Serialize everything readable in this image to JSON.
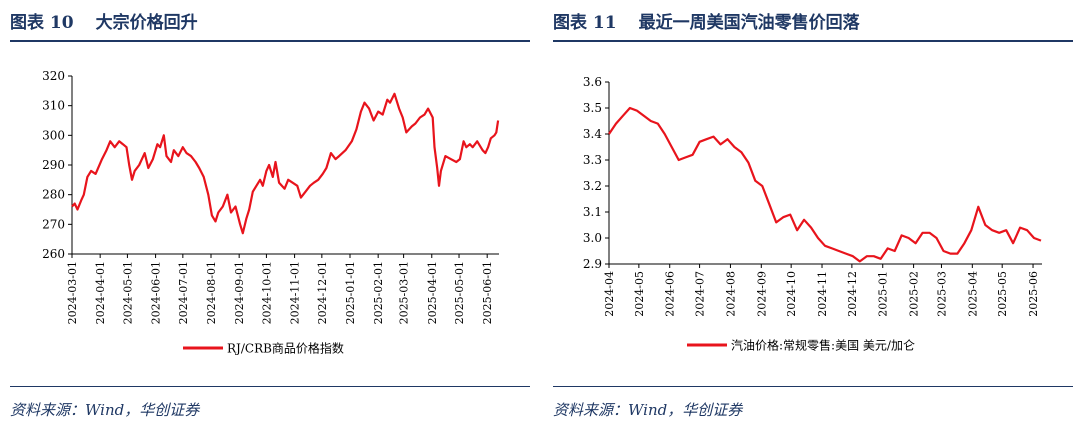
{
  "left": {
    "title_label": "图表 10",
    "title_text": "大宗价格回升",
    "source": "资料来源：Wind，华创证券"
  },
  "right": {
    "title_label": "图表 11",
    "title_text": "最近一周美国汽油零售价回落",
    "source": "资料来源：Wind，华创证券"
  },
  "colors": {
    "series": "#e8141c",
    "title": "#1f3864"
  },
  "chart_data": [
    {
      "type": "line",
      "title": "",
      "xlabel": "",
      "ylabel": "",
      "ylim": [
        260,
        320
      ],
      "yticks": [
        260,
        270,
        280,
        290,
        300,
        310,
        320
      ],
      "xticks": [
        "2024-03-01",
        "2024-04-01",
        "2024-05-01",
        "2024-06-01",
        "2024-07-01",
        "2024-08-01",
        "2024-09-01",
        "2024-10-01",
        "2024-11-01",
        "2024-12-01",
        "2025-01-01",
        "2025-02-01",
        "2025-03-01",
        "2025-04-01",
        "2025-05-01",
        "2025-06-01"
      ],
      "xrange": [
        "2024-03-01",
        "2025-06-14"
      ],
      "legend_position": "bottom",
      "grid": false,
      "series": [
        {
          "name": "RJ/CRB商品价格指数",
          "points": [
            [
              "2024-03-01",
              276
            ],
            [
              "2024-03-04",
              277
            ],
            [
              "2024-03-07",
              275
            ],
            [
              "2024-03-11",
              278
            ],
            [
              "2024-03-14",
              280
            ],
            [
              "2024-03-18",
              286
            ],
            [
              "2024-03-22",
              288
            ],
            [
              "2024-03-27",
              287
            ],
            [
              "2024-04-03",
              292
            ],
            [
              "2024-04-08",
              295
            ],
            [
              "2024-04-12",
              298
            ],
            [
              "2024-04-17",
              296
            ],
            [
              "2024-04-22",
              298
            ],
            [
              "2024-04-26",
              297
            ],
            [
              "2024-04-30",
              296
            ],
            [
              "2024-05-03",
              290
            ],
            [
              "2024-05-06",
              285
            ],
            [
              "2024-05-09",
              288
            ],
            [
              "2024-05-14",
              290
            ],
            [
              "2024-05-20",
              294
            ],
            [
              "2024-05-24",
              289
            ],
            [
              "2024-05-29",
              292
            ],
            [
              "2024-06-03",
              297
            ],
            [
              "2024-06-06",
              296
            ],
            [
              "2024-06-10",
              300
            ],
            [
              "2024-06-13",
              293
            ],
            [
              "2024-06-18",
              291
            ],
            [
              "2024-06-21",
              295
            ],
            [
              "2024-06-26",
              293
            ],
            [
              "2024-07-01",
              296
            ],
            [
              "2024-07-05",
              294
            ],
            [
              "2024-07-10",
              293
            ],
            [
              "2024-07-15",
              291
            ],
            [
              "2024-07-19",
              289
            ],
            [
              "2024-07-24",
              286
            ],
            [
              "2024-07-29",
              280
            ],
            [
              "2024-08-02",
              273
            ],
            [
              "2024-08-06",
              271
            ],
            [
              "2024-08-09",
              274
            ],
            [
              "2024-08-14",
              276
            ],
            [
              "2024-08-19",
              280
            ],
            [
              "2024-08-23",
              274
            ],
            [
              "2024-08-28",
              276
            ],
            [
              "2024-09-02",
              270
            ],
            [
              "2024-09-05",
              267
            ],
            [
              "2024-09-09",
              272
            ],
            [
              "2024-09-12",
              275
            ],
            [
              "2024-09-16",
              281
            ],
            [
              "2024-09-20",
              283
            ],
            [
              "2024-09-24",
              285
            ],
            [
              "2024-09-27",
              283
            ],
            [
              "2024-10-01",
              288
            ],
            [
              "2024-10-04",
              290
            ],
            [
              "2024-10-08",
              286
            ],
            [
              "2024-10-11",
              291
            ],
            [
              "2024-10-15",
              284
            ],
            [
              "2024-10-21",
              282
            ],
            [
              "2024-10-25",
              285
            ],
            [
              "2024-10-30",
              284
            ],
            [
              "2024-11-04",
              283
            ],
            [
              "2024-11-08",
              279
            ],
            [
              "2024-11-13",
              281
            ],
            [
              "2024-11-18",
              283
            ],
            [
              "2024-11-22",
              284
            ],
            [
              "2024-11-27",
              285
            ],
            [
              "2024-12-02",
              287
            ],
            [
              "2024-12-06",
              289
            ],
            [
              "2024-12-11",
              294
            ],
            [
              "2024-12-16",
              292
            ],
            [
              "2024-12-20",
              293
            ],
            [
              "2024-12-27",
              295
            ],
            [
              "2025-01-03",
              298
            ],
            [
              "2025-01-08",
              302
            ],
            [
              "2025-01-13",
              308
            ],
            [
              "2025-01-17",
              311
            ],
            [
              "2025-01-22",
              309
            ],
            [
              "2025-01-27",
              305
            ],
            [
              "2025-02-01",
              308
            ],
            [
              "2025-02-06",
              307
            ],
            [
              "2025-02-11",
              312
            ],
            [
              "2025-02-14",
              311
            ],
            [
              "2025-02-19",
              314
            ],
            [
              "2025-02-24",
              309
            ],
            [
              "2025-02-28",
              306
            ],
            [
              "2025-03-04",
              301
            ],
            [
              "2025-03-10",
              303
            ],
            [
              "2025-03-14",
              304
            ],
            [
              "2025-03-19",
              306
            ],
            [
              "2025-03-24",
              307
            ],
            [
              "2025-03-28",
              309
            ],
            [
              "2025-04-02",
              306
            ],
            [
              "2025-04-04",
              296
            ],
            [
              "2025-04-07",
              289
            ],
            [
              "2025-04-09",
              283
            ],
            [
              "2025-04-11",
              288
            ],
            [
              "2025-04-16",
              293
            ],
            [
              "2025-04-22",
              292
            ],
            [
              "2025-04-28",
              291
            ],
            [
              "2025-05-02",
              292
            ],
            [
              "2025-05-06",
              298
            ],
            [
              "2025-05-09",
              296
            ],
            [
              "2025-05-13",
              297
            ],
            [
              "2025-05-16",
              296
            ],
            [
              "2025-05-21",
              298
            ],
            [
              "2025-05-27",
              295
            ],
            [
              "2025-05-30",
              294
            ],
            [
              "2025-06-02",
              296
            ],
            [
              "2025-06-05",
              299
            ],
            [
              "2025-06-09",
              300
            ],
            [
              "2025-06-11",
              301
            ],
            [
              "2025-06-13",
              305
            ]
          ]
        }
      ]
    },
    {
      "type": "line",
      "title": "",
      "xlabel": "",
      "ylabel": "",
      "ylim": [
        2.9,
        3.6
      ],
      "yticks": [
        2.9,
        3.0,
        3.1,
        3.2,
        3.3,
        3.4,
        3.5,
        3.6
      ],
      "xticks": [
        "2024-04",
        "2024-05",
        "2024-06",
        "2024-07",
        "2024-08",
        "2024-09",
        "2024-10",
        "2024-11",
        "2024-12",
        "2025-01",
        "2025-02",
        "2025-03",
        "2025-04",
        "2025-05",
        "2025-06"
      ],
      "xrange": [
        "2024-04-01",
        "2025-06-10"
      ],
      "legend_position": "bottom",
      "grid": false,
      "series": [
        {
          "name": "汽油价格:常规零售:美国 美元/加仑",
          "points": [
            [
              "2024-04-01",
              3.4
            ],
            [
              "2024-04-08",
              3.44
            ],
            [
              "2024-04-15",
              3.47
            ],
            [
              "2024-04-22",
              3.5
            ],
            [
              "2024-04-29",
              3.49
            ],
            [
              "2024-05-06",
              3.47
            ],
            [
              "2024-05-13",
              3.45
            ],
            [
              "2024-05-20",
              3.44
            ],
            [
              "2024-05-27",
              3.4
            ],
            [
              "2024-06-03",
              3.35
            ],
            [
              "2024-06-10",
              3.3
            ],
            [
              "2024-06-17",
              3.31
            ],
            [
              "2024-06-24",
              3.32
            ],
            [
              "2024-07-01",
              3.37
            ],
            [
              "2024-07-08",
              3.38
            ],
            [
              "2024-07-15",
              3.39
            ],
            [
              "2024-07-22",
              3.36
            ],
            [
              "2024-07-29",
              3.38
            ],
            [
              "2024-08-05",
              3.35
            ],
            [
              "2024-08-12",
              3.33
            ],
            [
              "2024-08-19",
              3.29
            ],
            [
              "2024-08-26",
              3.22
            ],
            [
              "2024-09-02",
              3.2
            ],
            [
              "2024-09-09",
              3.13
            ],
            [
              "2024-09-16",
              3.06
            ],
            [
              "2024-09-23",
              3.08
            ],
            [
              "2024-09-30",
              3.09
            ],
            [
              "2024-10-07",
              3.03
            ],
            [
              "2024-10-14",
              3.07
            ],
            [
              "2024-10-21",
              3.04
            ],
            [
              "2024-10-28",
              3.0
            ],
            [
              "2024-11-04",
              2.97
            ],
            [
              "2024-11-11",
              2.96
            ],
            [
              "2024-11-18",
              2.95
            ],
            [
              "2024-11-25",
              2.94
            ],
            [
              "2024-12-02",
              2.93
            ],
            [
              "2024-12-09",
              2.91
            ],
            [
              "2024-12-16",
              2.93
            ],
            [
              "2024-12-23",
              2.93
            ],
            [
              "2024-12-30",
              2.92
            ],
            [
              "2025-01-06",
              2.96
            ],
            [
              "2025-01-13",
              2.95
            ],
            [
              "2025-01-20",
              3.01
            ],
            [
              "2025-01-27",
              3.0
            ],
            [
              "2025-02-03",
              2.98
            ],
            [
              "2025-02-10",
              3.02
            ],
            [
              "2025-02-17",
              3.02
            ],
            [
              "2025-02-24",
              3.0
            ],
            [
              "2025-03-03",
              2.95
            ],
            [
              "2025-03-10",
              2.94
            ],
            [
              "2025-03-17",
              2.94
            ],
            [
              "2025-03-24",
              2.98
            ],
            [
              "2025-03-31",
              3.03
            ],
            [
              "2025-04-07",
              3.12
            ],
            [
              "2025-04-14",
              3.05
            ],
            [
              "2025-04-21",
              3.03
            ],
            [
              "2025-04-28",
              3.02
            ],
            [
              "2025-05-05",
              3.03
            ],
            [
              "2025-05-12",
              2.98
            ],
            [
              "2025-05-19",
              3.04
            ],
            [
              "2025-05-26",
              3.03
            ],
            [
              "2025-06-02",
              3.0
            ],
            [
              "2025-06-09",
              2.99
            ]
          ]
        }
      ]
    }
  ]
}
